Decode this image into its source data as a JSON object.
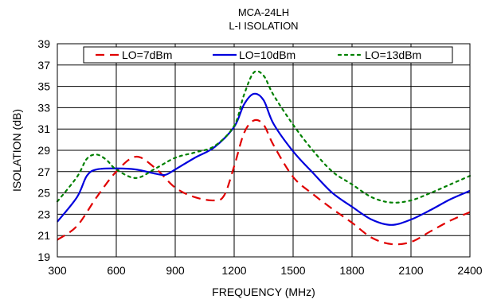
{
  "chart_data": {
    "type": "line",
    "title": "MCA-24LH",
    "subtitle": "L-I ISOLATION",
    "xlabel": "FREQUENCY (MHz)",
    "ylabel": "ISOLATION (dB)",
    "xlim": [
      300,
      2400
    ],
    "ylim": [
      19,
      39
    ],
    "xticks": [
      300,
      600,
      900,
      1200,
      1500,
      1800,
      2100,
      2400
    ],
    "yticks": [
      19,
      21,
      23,
      25,
      27,
      29,
      31,
      33,
      35,
      37,
      39
    ],
    "grid": true,
    "legend_position": "top",
    "series": [
      {
        "name": "LO=7dBm",
        "color": "#e00000",
        "style": "dashed",
        "x": [
          300,
          400,
          500,
          600,
          700,
          800,
          900,
          1000,
          1100,
          1150,
          1200,
          1250,
          1300,
          1350,
          1400,
          1500,
          1600,
          1700,
          1800,
          1900,
          2000,
          2100,
          2200,
          2300,
          2400
        ],
        "y": [
          20.6,
          21.9,
          24.6,
          27.0,
          28.4,
          27.3,
          25.5,
          24.6,
          24.3,
          24.8,
          27.5,
          30.6,
          31.8,
          31.4,
          29.5,
          26.5,
          24.9,
          23.5,
          22.2,
          20.8,
          20.2,
          20.4,
          21.4,
          22.4,
          23.2
        ]
      },
      {
        "name": "LO=10dBm",
        "color": "#0000dd",
        "style": "solid",
        "x": [
          300,
          400,
          450,
          500,
          600,
          700,
          800,
          850,
          900,
          1000,
          1100,
          1200,
          1250,
          1300,
          1350,
          1400,
          1500,
          1600,
          1700,
          1800,
          1900,
          2000,
          2100,
          2200,
          2300,
          2400
        ],
        "y": [
          22.3,
          24.6,
          26.6,
          27.2,
          27.3,
          27.2,
          26.8,
          26.7,
          27.2,
          28.3,
          29.3,
          31.2,
          33.3,
          34.3,
          33.7,
          31.5,
          28.9,
          26.9,
          25.0,
          23.7,
          22.5,
          22.0,
          22.5,
          23.4,
          24.4,
          25.2
        ]
      },
      {
        "name": "LO=13dBm",
        "color": "#008000",
        "style": "dotted",
        "x": [
          300,
          400,
          450,
          500,
          550,
          600,
          700,
          800,
          900,
          1000,
          1100,
          1200,
          1250,
          1300,
          1350,
          1400,
          1500,
          1600,
          1700,
          1800,
          1900,
          2000,
          2100,
          2200,
          2300,
          2400
        ],
        "y": [
          24.2,
          26.5,
          28.2,
          28.6,
          28.1,
          27.2,
          26.4,
          27.3,
          28.3,
          28.8,
          29.4,
          31.3,
          34.2,
          36.3,
          36.0,
          34.2,
          31.4,
          29.0,
          27.0,
          25.8,
          24.6,
          24.1,
          24.3,
          25.0,
          25.8,
          26.6
        ]
      }
    ]
  }
}
